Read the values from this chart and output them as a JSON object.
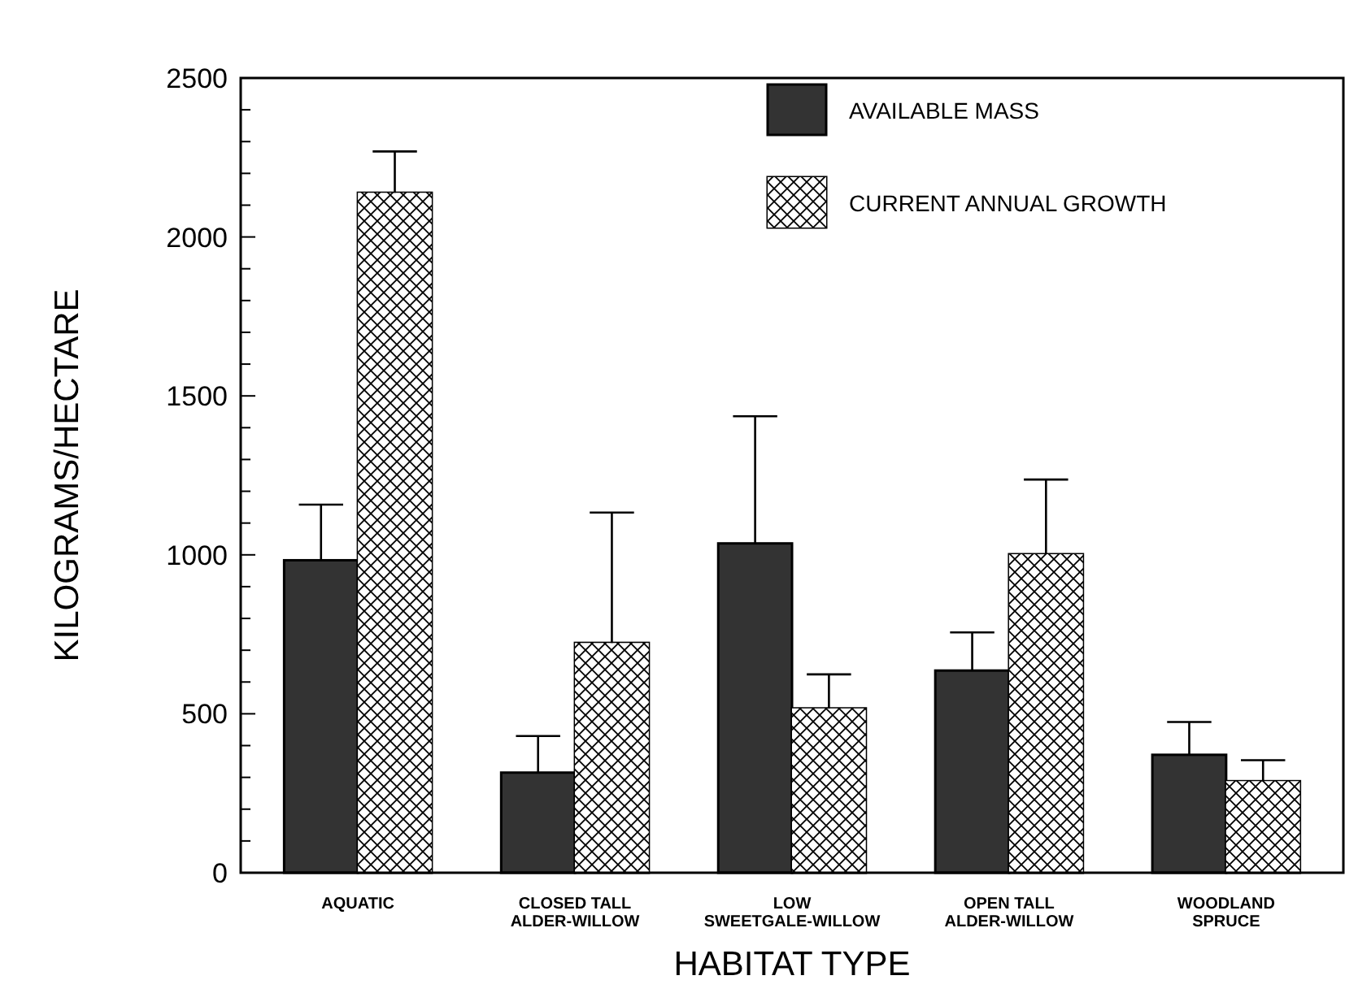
{
  "chart_data": {
    "type": "bar",
    "xlabel": "HABITAT TYPE",
    "ylabel": "KILOGRAMS/HECTARE",
    "categories": [
      "AQUATIC",
      "CLOSED TALL\nALDER-WILLOW",
      "LOW\nSWEETGALE-WILLOW",
      "OPEN TALL\nALDER-WILLOW",
      "WOODLAND\nSPRUCE"
    ],
    "series": [
      {
        "name": "AVAILABLE MASS",
        "color": "#333333",
        "values": [
          983,
          315,
          1036,
          636,
          371
        ],
        "errors": [
          [
            983,
            1158
          ],
          [
            315,
            430
          ],
          [
            1036,
            1436
          ],
          [
            636,
            756
          ],
          [
            371,
            474
          ]
        ]
      },
      {
        "name": "CURRENT ANNUAL GROWTH",
        "color": "#ffffff",
        "values": [
          2139,
          723,
          517,
          1002,
          288
        ],
        "errors": [
          [
            2139,
            2269
          ],
          [
            723,
            1133
          ],
          [
            517,
            624
          ],
          [
            1002,
            1237
          ],
          [
            288,
            354
          ]
        ]
      }
    ],
    "ylim": [
      0,
      2500
    ],
    "yticks": [
      0,
      {
        "value": 100,
        "label": null
      },
      {
        "value": 200,
        "label": null
      },
      {
        "value": 300,
        "label": null
      },
      {
        "value": 400,
        "label": null
      },
      500,
      {
        "value": 600,
        "label": null
      },
      {
        "value": 700,
        "label": null
      },
      {
        "value": 800,
        "label": null
      },
      {
        "value": 900,
        "label": null
      },
      1000,
      {
        "value": 1100,
        "label": null
      },
      {
        "value": 1200,
        "label": null
      },
      {
        "value": 1300,
        "label": null
      },
      {
        "value": 1400,
        "label": null
      },
      1500,
      {
        "value": 1600,
        "label": null
      },
      {
        "value": 1700,
        "label": null
      },
      {
        "value": 1800,
        "label": null
      },
      {
        "value": 1900,
        "label": null
      },
      2000,
      {
        "value": 2100,
        "label": null
      },
      {
        "value": 2200,
        "label": null
      },
      {
        "value": 2300,
        "label": null
      },
      {
        "value": 2400,
        "label": null
      },
      2500
    ],
    "grid": false,
    "legend": "top right"
  }
}
